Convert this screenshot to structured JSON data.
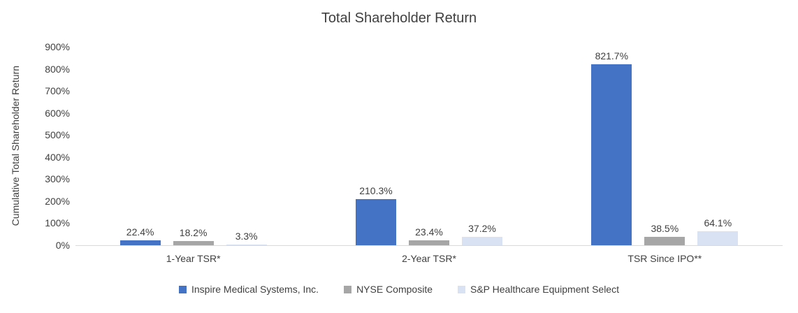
{
  "chart_data": {
    "type": "bar",
    "title": "Total Shareholder Return",
    "ylabel": "Cumulative Total Shareholder Return",
    "xlabel": "",
    "categories": [
      "1-Year TSR*",
      "2-Year TSR*",
      "TSR Since IPO**"
    ],
    "series": [
      {
        "name": "Inspire Medical Systems, Inc.",
        "color": "#4472C4",
        "values": [
          22.4,
          210.3,
          821.7
        ],
        "labels": [
          "22.4%",
          "210.3%",
          "821.7%"
        ]
      },
      {
        "name": "NYSE Composite",
        "color": "#A6A6A6",
        "values": [
          18.2,
          23.4,
          38.5
        ],
        "labels": [
          "18.2%",
          "23.4%",
          "38.5%"
        ]
      },
      {
        "name": "S&P Healthcare Equipment Select",
        "color": "#D9E2F3",
        "values": [
          3.3,
          37.2,
          64.1
        ],
        "labels": [
          "3.3%",
          "37.2%",
          "64.1%"
        ]
      }
    ],
    "y_axis": {
      "min": 0,
      "max": 900,
      "step": 100,
      "tick_labels": [
        "900%",
        "800%",
        "700%",
        "600%",
        "500%",
        "400%",
        "300%",
        "200%",
        "100%",
        "0%"
      ]
    },
    "legend_position": "bottom",
    "grid": false,
    "axis_line_color": "#D9D9D9",
    "text_color": "#404040"
  }
}
